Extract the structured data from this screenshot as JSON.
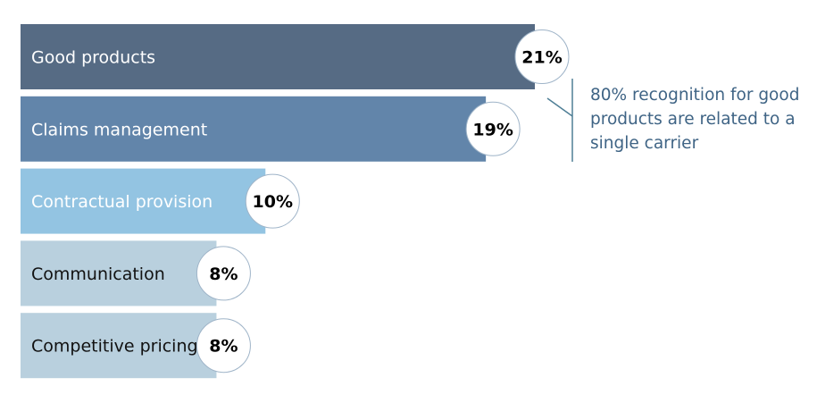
{
  "chart_data": {
    "type": "bar",
    "orientation": "horizontal",
    "categories": [
      "Good products",
      "Claims management",
      "Contractual provision",
      "Communication",
      "Competitive pricing"
    ],
    "values": [
      21,
      19,
      10,
      8,
      8
    ],
    "value_labels": [
      "21%",
      "19%",
      "10%",
      "8%",
      "8%"
    ],
    "bar_colors": [
      "#566b84",
      "#6285aa",
      "#93c4e2",
      "#b9d0de",
      "#b9d0de"
    ],
    "label_colors": [
      "#ffffff",
      "#ffffff",
      "#ffffff",
      "#111111",
      "#111111"
    ],
    "circle_border_color": "#9fb4c8",
    "xlim": [
      0,
      21
    ],
    "grid": false,
    "legend": "none",
    "title": "",
    "xlabel": "",
    "ylabel": ""
  },
  "annotation": {
    "lines": [
      "80% recognition for good",
      "products are related to a",
      "single carrier"
    ],
    "color": "#3f6485",
    "bracket_color": "#4f7f96"
  }
}
